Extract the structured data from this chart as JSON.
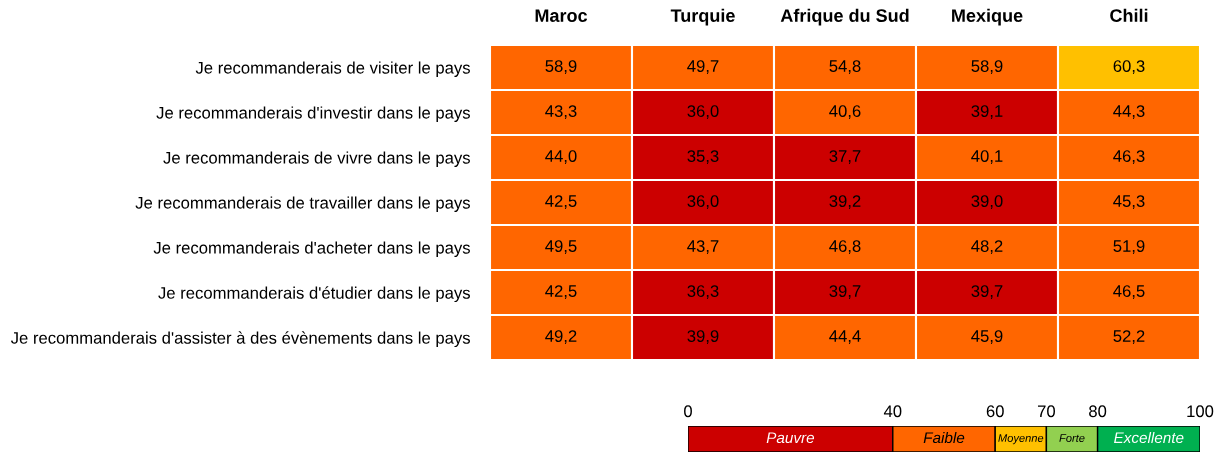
{
  "chart_data": {
    "type": "heatmap",
    "categories": [
      "Maroc",
      "Turquie",
      "Afrique du Sud",
      "Mexique",
      "Chili"
    ],
    "y_categories": [
      "Je recommanderais de visiter le pays",
      "Je recommanderais d'investir dans le pays",
      "Je recommanderais de vivre dans le pays",
      "Je recommanderais de travailler dans le pays",
      "Je recommanderais d'acheter dans le pays",
      "Je recommanderais d'étudier dans le pays",
      "Je recommanderais d'assister à des évènements dans le pays"
    ],
    "cells": [
      [
        58.9,
        49.7,
        54.8,
        58.9,
        60.3
      ],
      [
        43.3,
        36.0,
        40.6,
        39.1,
        44.3
      ],
      [
        44.0,
        35.3,
        37.7,
        40.1,
        46.3
      ],
      [
        42.5,
        36.0,
        39.2,
        39.0,
        45.3
      ],
      [
        49.5,
        43.7,
        46.8,
        48.2,
        51.9
      ],
      [
        42.5,
        36.3,
        39.7,
        39.7,
        46.5
      ],
      [
        49.2,
        39.9,
        44.4,
        45.9,
        52.2
      ]
    ],
    "cell_labels": [
      [
        "58,9",
        "49,7",
        "54,8",
        "58,9",
        "60,3"
      ],
      [
        "43,3",
        "36,0",
        "40,6",
        "39,1",
        "44,3"
      ],
      [
        "44,0",
        "35,3",
        "37,7",
        "40,1",
        "46,3"
      ],
      [
        "42,5",
        "36,0",
        "39,2",
        "39,0",
        "45,3"
      ],
      [
        "49,5",
        "43,7",
        "46,8",
        "48,2",
        "51,9"
      ],
      [
        "42,5",
        "36,3",
        "39,7",
        "39,7",
        "46,5"
      ],
      [
        "49,2",
        "39,9",
        "44,4",
        "45,9",
        "52,2"
      ]
    ],
    "clim": [
      0,
      100
    ],
    "cticks": [
      0,
      40,
      60,
      70,
      80,
      100
    ],
    "colors": [
      "#cc0000",
      "#ff6600",
      "#ffc000",
      "#92d050",
      "#00b050"
    ],
    "annotations": [
      "Pauvre",
      "Faible",
      "Moyenne",
      "Forte",
      "Excellente"
    ]
  }
}
